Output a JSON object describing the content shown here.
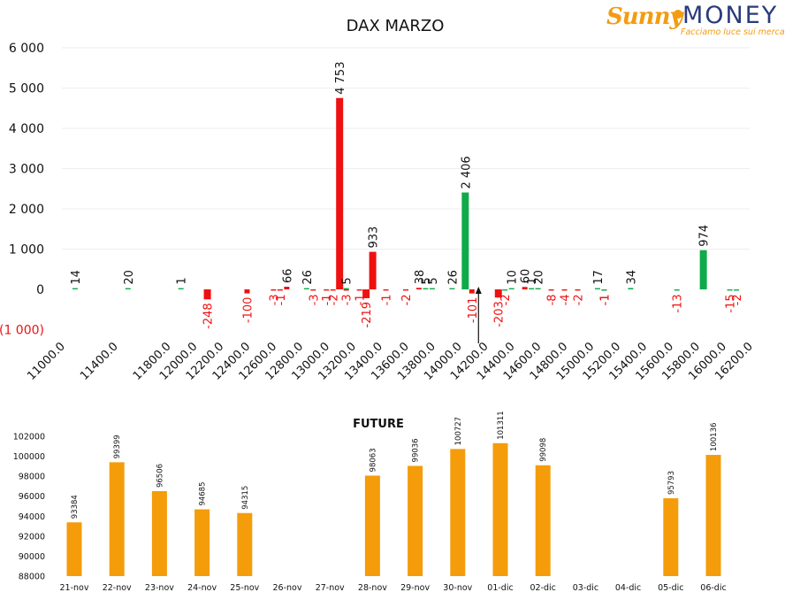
{
  "logo": {
    "brand_sunny": "Sunny",
    "brand_money": "MONEY",
    "tagline": "Facciamo luce sui mercati"
  },
  "colors": {
    "negative": "#ee1111",
    "positive": "#0faa4a",
    "future": "#f59c0a",
    "grid": "#eeeeee"
  },
  "chart_data": [
    {
      "type": "bar",
      "title": "DAX MARZO",
      "xlabel": "",
      "ylabel": "",
      "ylim": [
        -1000,
        6000
      ],
      "yticks": [
        -1000,
        0,
        1000,
        2000,
        3000,
        4000,
        5000,
        6000
      ],
      "ytick_labels": [
        "(1 000)",
        "0",
        "1 000",
        "2 000",
        "3 000",
        "4 000",
        "5 000",
        "6 000"
      ],
      "xlim": [
        11000,
        16200
      ],
      "xticks": [
        11000,
        11400,
        11800,
        12000,
        12200,
        12400,
        12600,
        12800,
        13000,
        13200,
        13400,
        13600,
        13800,
        14000,
        14200,
        14400,
        14600,
        14800,
        15000,
        15200,
        15400,
        15600,
        15800,
        16000,
        16200
      ],
      "xtick_labels": [
        "11000.0",
        "11400.0",
        "11800.0",
        "12000.0",
        "12200.0",
        "12400.0",
        "12600.0",
        "12800.0",
        "13000.0",
        "13200.0",
        "13400.0",
        "13600.0",
        "13800.0",
        "14000.0",
        "14200.0",
        "14400.0",
        "14600.0",
        "14800.0",
        "15000.0",
        "15200.0",
        "15400.0",
        "15600.0",
        "15800.0",
        "16000.0",
        "16200.0"
      ],
      "grid": true,
      "current_price_marker": 14150,
      "series": [
        {
          "color": "#ee1111",
          "points": [
            {
              "x": 12100,
              "y": -248,
              "label": "-248"
            },
            {
              "x": 12400,
              "y": -100,
              "label": "-100"
            },
            {
              "x": 12600,
              "y": -3,
              "label": "-3"
            },
            {
              "x": 12650,
              "y": -1,
              "label": "-1"
            },
            {
              "x": 12700,
              "y": 66,
              "label": "66"
            },
            {
              "x": 12900,
              "y": -3,
              "label": "-3"
            },
            {
              "x": 13000,
              "y": -1,
              "label": "-1"
            },
            {
              "x": 13050,
              "y": -2,
              "label": "-2"
            },
            {
              "x": 13100,
              "y": 4753,
              "label": "4 753"
            },
            {
              "x": 13150,
              "y": -3,
              "label": "-3"
            },
            {
              "x": 13250,
              "y": -1,
              "label": "-1"
            },
            {
              "x": 13300,
              "y": -219,
              "label": "-219"
            },
            {
              "x": 13350,
              "y": 933,
              "label": "933"
            },
            {
              "x": 13450,
              "y": -1,
              "label": "-1"
            },
            {
              "x": 13600,
              "y": -2,
              "label": "-2"
            },
            {
              "x": 13700,
              "y": 38,
              "label": "38"
            },
            {
              "x": 14100,
              "y": -101,
              "label": "-101"
            },
            {
              "x": 14300,
              "y": -203,
              "label": "-203"
            },
            {
              "x": 14500,
              "y": 60,
              "label": "60"
            },
            {
              "x": 14700,
              "y": -8,
              "label": "-8"
            },
            {
              "x": 14800,
              "y": -4,
              "label": "-4"
            },
            {
              "x": 14900,
              "y": -2,
              "label": "-2"
            },
            {
              "x": 15100,
              "y": -1,
              "label": "-1"
            }
          ]
        },
        {
          "color": "#0faa4a",
          "points": [
            {
              "x": 11100,
              "y": 14,
              "label": "14"
            },
            {
              "x": 11500,
              "y": 20,
              "label": "20"
            },
            {
              "x": 11900,
              "y": 1,
              "label": "1"
            },
            {
              "x": 12850,
              "y": 26,
              "label": "26"
            },
            {
              "x": 13150,
              "y": 5,
              "label": "5"
            },
            {
              "x": 13750,
              "y": 5,
              "label": "5"
            },
            {
              "x": 13800,
              "y": 5,
              "label": "5"
            },
            {
              "x": 13950,
              "y": 26,
              "label": "26"
            },
            {
              "x": 14050,
              "y": 2406,
              "label": "2 406"
            },
            {
              "x": 14350,
              "y": -2,
              "label": "-2"
            },
            {
              "x": 14400,
              "y": 10,
              "label": "10"
            },
            {
              "x": 14550,
              "y": 1,
              "label": "1"
            },
            {
              "x": 14600,
              "y": 20,
              "label": "20"
            },
            {
              "x": 15050,
              "y": 17,
              "label": "17"
            },
            {
              "x": 15100,
              "y": -1,
              "label": "-1"
            },
            {
              "x": 15300,
              "y": 34,
              "label": "34"
            },
            {
              "x": 15650,
              "y": -13,
              "label": "-13"
            },
            {
              "x": 15850,
              "y": 974,
              "label": "974"
            },
            {
              "x": 16050,
              "y": -15,
              "label": "-15"
            },
            {
              "x": 16100,
              "y": -2,
              "label": "-2"
            }
          ]
        }
      ]
    },
    {
      "type": "bar",
      "title": "FUTURE",
      "xlabel": "",
      "ylabel": "",
      "ylim": [
        88000,
        102000
      ],
      "yticks": [
        88000,
        90000,
        92000,
        94000,
        96000,
        98000,
        100000,
        102000
      ],
      "grid": false,
      "categories": [
        "21-nov",
        "22-nov",
        "23-nov",
        "24-nov",
        "25-nov",
        "26-nov",
        "27-nov",
        "28-nov",
        "29-nov",
        "30-nov",
        "01-dic",
        "02-dic",
        "03-dic",
        "04-dic",
        "05-dic",
        "06-dic"
      ],
      "values": [
        93384,
        99399,
        96506,
        94685,
        94315,
        null,
        null,
        98063,
        99036,
        100727,
        101311,
        99098,
        null,
        null,
        95793,
        100136
      ],
      "value_labels": [
        "93384",
        "99399",
        "96506",
        "94685",
        "94315",
        "",
        "",
        "98063",
        "99036",
        "100727",
        "101311",
        "99098",
        "",
        "",
        "95793",
        "100136"
      ]
    }
  ]
}
